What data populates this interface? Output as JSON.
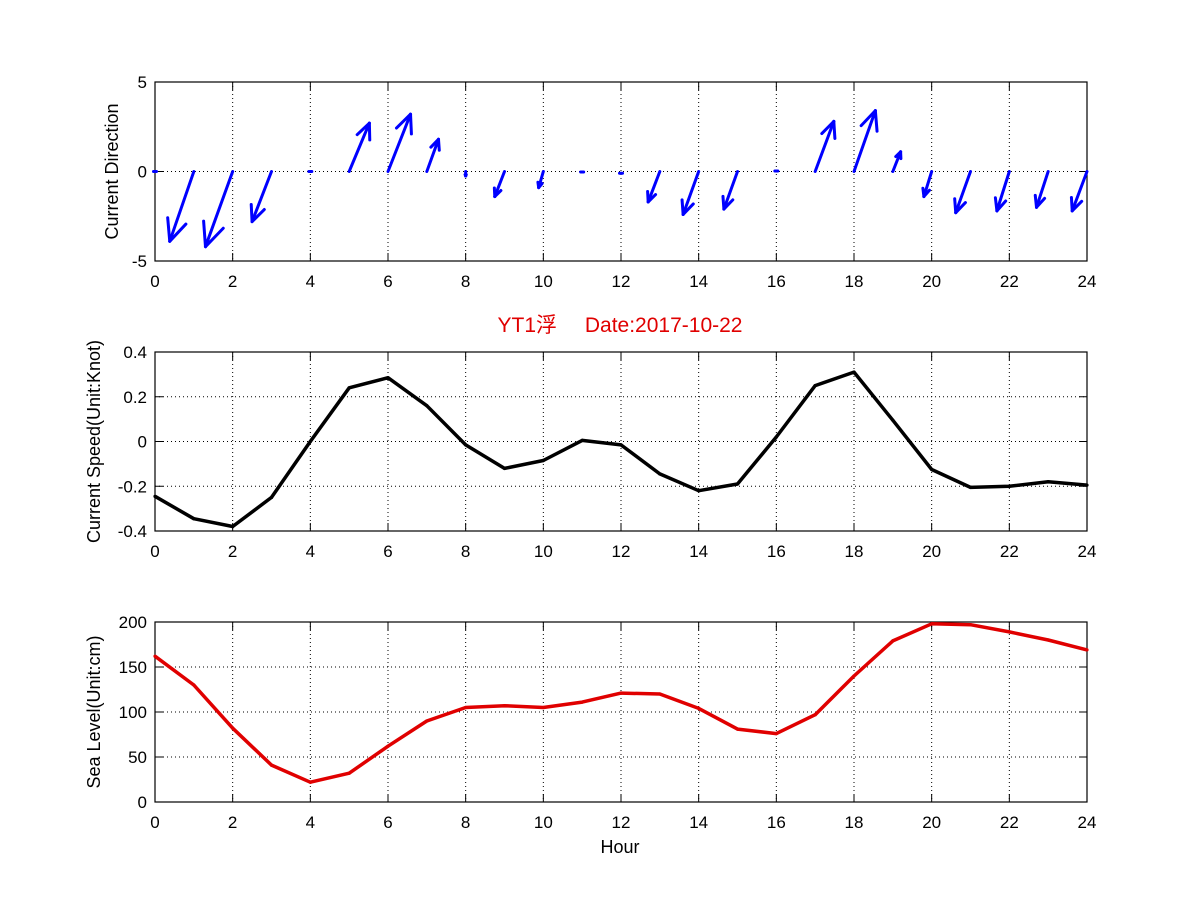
{
  "chart_data": [
    {
      "type": "quiver",
      "ylabel": "Current Direction",
      "xlim": [
        0,
        24
      ],
      "ylim": [
        -5,
        5
      ],
      "x_ticks": [
        0,
        2,
        4,
        6,
        8,
        10,
        12,
        14,
        16,
        18,
        20,
        22,
        24
      ],
      "y_ticks": [
        -5,
        0,
        5
      ],
      "color": "#0000ff",
      "arrows": [
        {
          "x": 0,
          "u": 0,
          "v": 0
        },
        {
          "x": 1,
          "u": -0.62,
          "v": -3.9
        },
        {
          "x": 2,
          "u": -0.7,
          "v": -4.2
        },
        {
          "x": 3,
          "u": -0.5,
          "v": -2.8
        },
        {
          "x": 4,
          "u": 0,
          "v": 0
        },
        {
          "x": 5,
          "u": 0.52,
          "v": 2.7
        },
        {
          "x": 6,
          "u": 0.58,
          "v": 3.2
        },
        {
          "x": 7,
          "u": 0.3,
          "v": 1.8
        },
        {
          "x": 8,
          "u": 0,
          "v": -0.25
        },
        {
          "x": 9,
          "u": -0.25,
          "v": -1.4
        },
        {
          "x": 10,
          "u": -0.12,
          "v": -0.9
        },
        {
          "x": 11,
          "u": 0,
          "v": -0.05
        },
        {
          "x": 12,
          "u": 0,
          "v": -0.2
        },
        {
          "x": 13,
          "u": -0.3,
          "v": -1.7
        },
        {
          "x": 14,
          "u": -0.4,
          "v": -2.4
        },
        {
          "x": 15,
          "u": -0.35,
          "v": -2.1
        },
        {
          "x": 16,
          "u": 0,
          "v": 0.05
        },
        {
          "x": 17,
          "u": 0.48,
          "v": 2.8
        },
        {
          "x": 18,
          "u": 0.55,
          "v": 3.4
        },
        {
          "x": 19,
          "u": 0.2,
          "v": 1.1
        },
        {
          "x": 20,
          "u": -0.2,
          "v": -1.4
        },
        {
          "x": 21,
          "u": -0.38,
          "v": -2.3
        },
        {
          "x": 22,
          "u": -0.32,
          "v": -2.2
        },
        {
          "x": 23,
          "u": -0.3,
          "v": -2.0
        },
        {
          "x": 24,
          "u": -0.38,
          "v": -2.2
        }
      ]
    },
    {
      "type": "line",
      "title_name": "YT1浮",
      "title_date": "Date:2017-10-22",
      "title_color": "#e00000",
      "ylabel": "Current Speed(Unit:Knot)",
      "xlim": [
        0,
        24
      ],
      "ylim": [
        -0.4,
        0.4
      ],
      "x_ticks": [
        0,
        2,
        4,
        6,
        8,
        10,
        12,
        14,
        16,
        18,
        20,
        22,
        24
      ],
      "y_ticks": [
        -0.4,
        -0.2,
        0,
        0.2,
        0.4
      ],
      "y_tick_labels": [
        "-0.4",
        "-0.2",
        "0",
        "0.2",
        "0.4"
      ],
      "color": "#000000",
      "x": [
        0,
        1,
        2,
        3,
        4,
        5,
        6,
        7,
        8,
        9,
        10,
        11,
        12,
        13,
        14,
        15,
        16,
        17,
        18,
        19,
        20,
        21,
        22,
        23,
        24
      ],
      "values": [
        -0.245,
        -0.345,
        -0.38,
        -0.25,
        0.0,
        0.24,
        0.285,
        0.16,
        -0.015,
        -0.12,
        -0.085,
        0.005,
        -0.015,
        -0.145,
        -0.22,
        -0.19,
        0.02,
        0.25,
        0.31,
        0.095,
        -0.125,
        -0.205,
        -0.2,
        -0.18,
        -0.195
      ]
    },
    {
      "type": "line",
      "xlabel": "Hour",
      "ylabel": "Sea Level(Unit:cm)",
      "xlim": [
        0,
        24
      ],
      "ylim": [
        0,
        200
      ],
      "x_ticks": [
        0,
        2,
        4,
        6,
        8,
        10,
        12,
        14,
        16,
        18,
        20,
        22,
        24
      ],
      "y_ticks": [
        0,
        50,
        100,
        150,
        200
      ],
      "y_tick_labels": [
        "0",
        "50",
        "100",
        "150",
        "200"
      ],
      "color": "#e00000",
      "x": [
        0,
        1,
        2,
        3,
        4,
        5,
        6,
        7,
        8,
        9,
        10,
        11,
        12,
        13,
        14,
        15,
        16,
        17,
        18,
        19,
        20,
        21,
        22,
        23,
        24
      ],
      "values": [
        162,
        130,
        82,
        41,
        22,
        32,
        62,
        90,
        105,
        107,
        105,
        111,
        121,
        120,
        104,
        81,
        76,
        97,
        140,
        179,
        198,
        197,
        189,
        180,
        169
      ]
    }
  ]
}
